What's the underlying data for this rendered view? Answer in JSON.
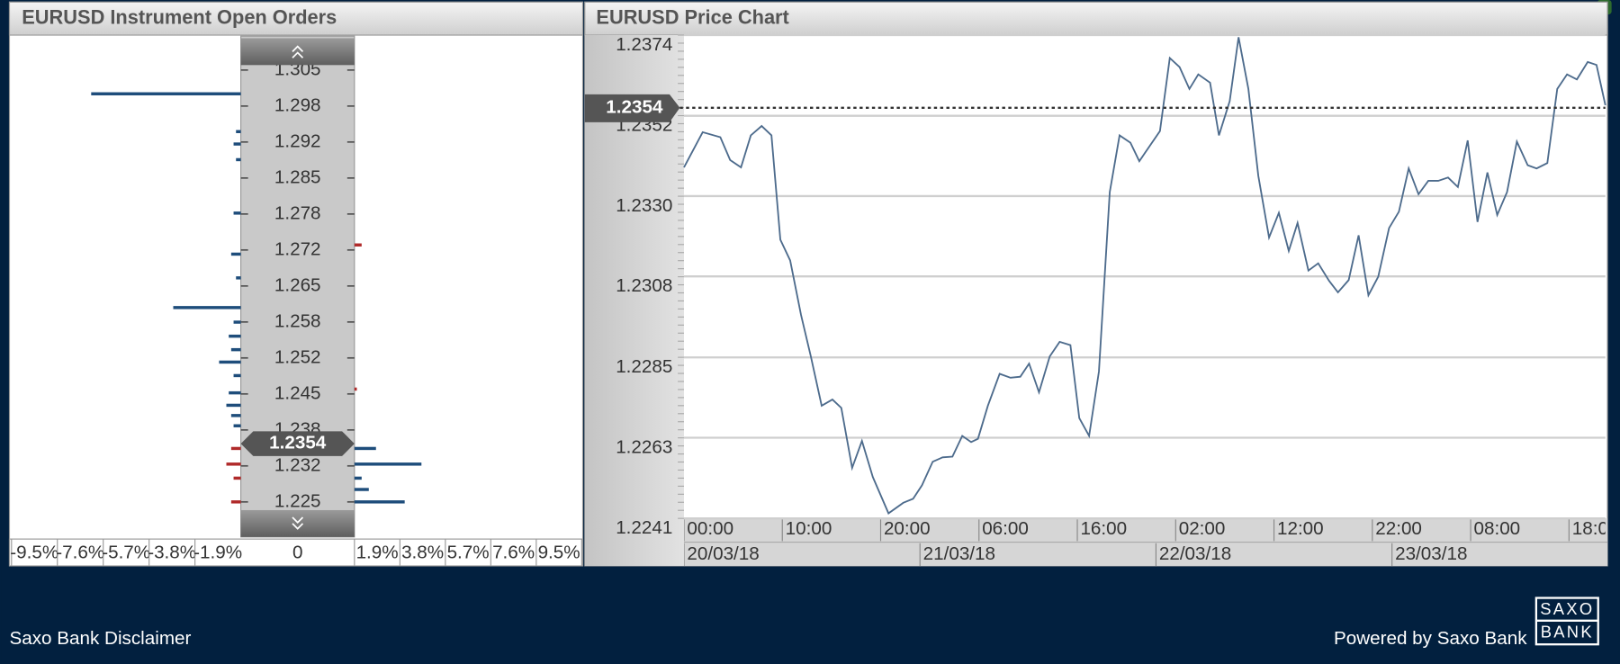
{
  "chart_data": [
    {
      "type": "bar",
      "orientation": "horizontal",
      "title": "EURUSD Instrument Open Orders",
      "y": [
        1.3006,
        1.2936,
        1.2913,
        1.2884,
        1.2785,
        1.2726,
        1.2709,
        1.2665,
        1.261,
        1.2583,
        1.2557,
        1.2532,
        1.2509,
        1.2484,
        1.2459,
        1.2452,
        1.2429,
        1.241,
        1.2391,
        1.2349,
        1.232,
        1.2294,
        1.2273,
        1.225
      ],
      "series": [
        {
          "color": "#1e4d7b",
          "values": [
            -6.2,
            -0.2,
            -0.3,
            -0.2,
            -0.3,
            null,
            -0.4,
            -0.2,
            -2.8,
            -0.3,
            -0.5,
            -0.4,
            -0.9,
            -0.3,
            null,
            -0.5,
            -0.6,
            -0.4,
            -0.3,
            0.9,
            2.8,
            0.3,
            0.6,
            2.1
          ]
        },
        {
          "color": "#b02a2a",
          "values": [
            null,
            null,
            null,
            null,
            null,
            0.3,
            null,
            null,
            null,
            null,
            null,
            null,
            null,
            null,
            0.1,
            null,
            null,
            null,
            null,
            -0.4,
            -0.6,
            -0.3,
            null,
            -0.4
          ]
        }
      ],
      "ylim": [
        1.2185,
        1.3109
      ],
      "yticks": [
        1.305,
        {
          "value": 1.29833,
          "label": "1.298"
        },
        {
          "value": 1.29167,
          "label": "1.292"
        },
        1.285,
        {
          "value": 1.27833,
          "label": "1.278"
        },
        {
          "value": 1.27167,
          "label": "1.272"
        },
        1.265,
        {
          "value": 1.25833,
          "label": "1.258"
        },
        {
          "value": 1.25167,
          "label": "1.252"
        },
        1.245,
        {
          "value": 1.23833,
          "label": "1.238"
        },
        {
          "value": 1.23167,
          "label": "1.232"
        },
        1.225
      ],
      "xlim": [
        -9.5,
        9.5
      ],
      "xticks": [
        {
          "value": -9.5,
          "label": "-9.5%"
        },
        {
          "value": -7.6,
          "label": "-7.6%"
        },
        {
          "value": -5.7,
          "label": "-5.7%"
        },
        {
          "value": -3.8,
          "label": "-3.8%"
        },
        {
          "value": -1.9,
          "label": "-1.9%"
        },
        0,
        {
          "value": 1.9,
          "label": "1.9%"
        },
        {
          "value": 3.8,
          "label": "3.8%"
        },
        {
          "value": 5.7,
          "label": "5.7%"
        },
        {
          "value": 7.6,
          "label": "7.6%"
        },
        {
          "value": 9.5,
          "label": "9.5%"
        }
      ],
      "current_price": 1.2354
    },
    {
      "type": "line",
      "title": "EURUSD Price Chart",
      "color": "#4d6b8c",
      "x": [
        0,
        1.9,
        3.7,
        4.7,
        5.8,
        6.8,
        7.9,
        8.9,
        9.8,
        10.8,
        11.9,
        12.9,
        14.0,
        15.1,
        16.0,
        17.1,
        18.1,
        19.2,
        20.8,
        22.3,
        23.3,
        24.2,
        25.3,
        26.3,
        27.3,
        28.3,
        29.2,
        29.9,
        30.9,
        32.1,
        33.2,
        34.2,
        35.1,
        36.1,
        37.2,
        38.2,
        39.3,
        40.2,
        41.2,
        42.2,
        43.3,
        44.3,
        45.4,
        46.3,
        48.4,
        49.4,
        50.4,
        51.4,
        52.3,
        53.5,
        54.4,
        55.5,
        56.4,
        57.4,
        58.4,
        59.5,
        60.5,
        61.5,
        62.4,
        63.5,
        64.5,
        65.6,
        66.5,
        67.6,
        68.6,
        69.6,
        70.6,
        71.7,
        72.7,
        73.7,
        74.7,
        75.7,
        76.7,
        77.7,
        78.7,
        79.7,
        80.7,
        81.7,
        82.7,
        83.7,
        84.7,
        85.8,
        86.7,
        87.8,
        88.8,
        89.8,
        90.8,
        91.9,
        92.8,
        93.7
      ],
      "values": [
        1.23376,
        1.23473,
        1.23459,
        1.23396,
        1.23376,
        1.23464,
        1.2349,
        1.23464,
        1.23177,
        1.2312,
        1.2297,
        1.22856,
        1.2272,
        1.22737,
        1.22714,
        1.22549,
        1.22623,
        1.22524,
        1.22424,
        1.22453,
        1.22464,
        1.22501,
        1.22566,
        1.22578,
        1.2258,
        1.22637,
        1.2262,
        1.22629,
        1.2272,
        1.22808,
        1.22797,
        1.228,
        1.22836,
        1.22757,
        1.22856,
        1.22896,
        1.22887,
        1.22686,
        1.22637,
        1.22814,
        1.23308,
        1.23464,
        1.23444,
        1.23393,
        1.23476,
        1.23677,
        1.23652,
        1.23592,
        1.23632,
        1.23609,
        1.23464,
        1.23558,
        1.23734,
        1.23592,
        1.23353,
        1.23183,
        1.23251,
        1.23146,
        1.23223,
        1.23092,
        1.23112,
        1.23064,
        1.23032,
        1.23066,
        1.23189,
        1.23024,
        1.23075,
        1.23209,
        1.23254,
        1.23373,
        1.23302,
        1.23339,
        1.23339,
        1.23348,
        1.23322,
        1.2345,
        1.23226,
        1.23362,
        1.23245,
        1.23308,
        1.23447,
        1.23382,
        1.23373,
        1.23388,
        1.23592,
        1.23632,
        1.23618,
        1.23666,
        1.23658,
        1.23547
      ],
      "xlim": [
        0,
        93.7
      ],
      "xticks": [
        {
          "value": 0,
          "label": "00:00"
        },
        {
          "value": 10,
          "label": "10:00"
        },
        {
          "value": 20,
          "label": "20:00"
        },
        {
          "value": 30,
          "label": "06:00"
        },
        {
          "value": 40,
          "label": "16:00"
        },
        {
          "value": 50,
          "label": "02:00"
        },
        {
          "value": 60,
          "label": "12:00"
        },
        {
          "value": 70,
          "label": "22:00"
        },
        {
          "value": 80,
          "label": "08:00"
        },
        {
          "value": 90,
          "label": "18:00"
        }
      ],
      "date_ticks": [
        {
          "value": 0,
          "label": "20/03/18"
        },
        {
          "value": 24,
          "label": "21/03/18"
        },
        {
          "value": 48,
          "label": "22/03/18"
        },
        {
          "value": 72,
          "label": "23/03/18"
        }
      ],
      "ylim": [
        1.2241,
        1.2374
      ],
      "yticks": [
        1.2241,
        {
          "value": 1.22632,
          "label": "1.2263"
        },
        {
          "value": 1.22853,
          "label": "1.2285"
        },
        {
          "value": 1.23076,
          "label": "1.2308"
        },
        {
          "value": 1.23297,
          "label": "1.2330"
        },
        {
          "value": 1.23518,
          "label": "1.2352"
        },
        1.2374
      ],
      "grid": true,
      "current_price": 1.2354
    }
  ],
  "footer": {
    "disclaimer": "Saxo Bank Disclaimer",
    "powered_by": "Powered by Saxo Bank",
    "logo": [
      "SAXO",
      "BANK"
    ]
  }
}
